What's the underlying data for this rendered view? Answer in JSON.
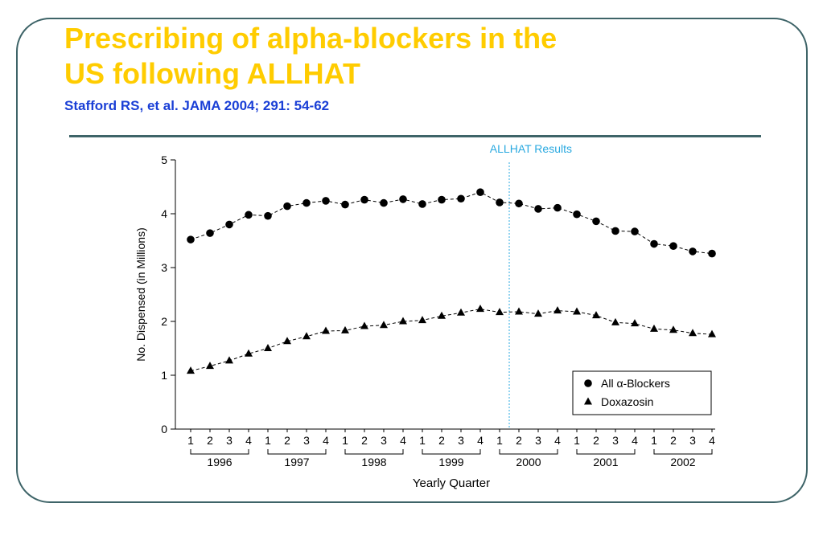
{
  "slide": {
    "title_line1": "Prescribing of alpha-blockers in the",
    "title_line2": "US following ALLHAT",
    "citation": "Stafford RS, et al. JAMA 2004; 291: 54-62",
    "title_color": "#ffcc00",
    "citation_color": "#1a3fd6",
    "frame_color": "#3e6468"
  },
  "chart_data": {
    "type": "line",
    "title": "",
    "xlabel": "Yearly Quarter",
    "ylabel": "No. Dispensed (in Millions)",
    "ylim": [
      0,
      5
    ],
    "yticks": [
      0,
      1,
      2,
      3,
      4,
      5
    ],
    "quarters": [
      "1",
      "2",
      "3",
      "4",
      "1",
      "2",
      "3",
      "4",
      "1",
      "2",
      "3",
      "4",
      "1",
      "2",
      "3",
      "4",
      "1",
      "2",
      "3",
      "4",
      "1",
      "2",
      "3",
      "4",
      "1",
      "2",
      "3",
      "4"
    ],
    "years": [
      "1996",
      "1997",
      "1998",
      "1999",
      "2000",
      "2001",
      "2002"
    ],
    "annotation": {
      "label": "ALLHAT Results",
      "x_index": 16.5,
      "color": "#29a9e0"
    },
    "legend_position": "bottom-right",
    "grid": false,
    "series": [
      {
        "name": "All α-Blockers",
        "marker": "circle",
        "values": [
          3.52,
          3.64,
          3.8,
          3.98,
          3.96,
          4.14,
          4.2,
          4.24,
          4.17,
          4.26,
          4.2,
          4.27,
          4.18,
          4.26,
          4.28,
          4.4,
          4.21,
          4.19,
          4.09,
          4.11,
          3.99,
          3.86,
          3.68,
          3.67,
          3.44,
          3.4,
          3.3,
          3.26
        ]
      },
      {
        "name": "Doxazosin",
        "marker": "triangle",
        "values": [
          1.08,
          1.17,
          1.27,
          1.4,
          1.5,
          1.63,
          1.72,
          1.82,
          1.83,
          1.91,
          1.93,
          2.0,
          2.02,
          2.1,
          2.16,
          2.23,
          2.17,
          2.18,
          2.14,
          2.2,
          2.18,
          2.11,
          1.98,
          1.96,
          1.86,
          1.84,
          1.78,
          1.76
        ]
      }
    ]
  }
}
